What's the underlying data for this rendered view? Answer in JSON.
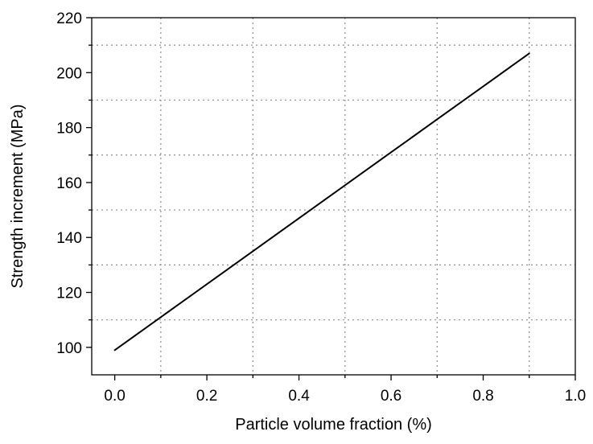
{
  "chart_data": {
    "type": "line",
    "title": "",
    "xlabel": "Particle volume fraction (%)",
    "ylabel": "Strength increment (MPa)",
    "xlim": [
      -0.05,
      1.0
    ],
    "ylim": [
      90,
      220
    ],
    "x_ticks": [
      0.0,
      0.2,
      0.4,
      0.6,
      0.8,
      1.0
    ],
    "x_tick_labels": [
      "0.0",
      "0.2",
      "0.4",
      "0.6",
      "0.8",
      "1.0"
    ],
    "y_ticks": [
      100,
      120,
      140,
      160,
      180,
      200,
      220
    ],
    "y_tick_labels": [
      "100",
      "120",
      "140",
      "160",
      "180",
      "200",
      "220"
    ],
    "x_grid": [
      0.1,
      0.3,
      0.5,
      0.7,
      0.9
    ],
    "y_grid": [
      110,
      130,
      150,
      170,
      190,
      210
    ],
    "grid": true,
    "legend": false,
    "series": [
      {
        "x": [
          0.0,
          0.1,
          0.2,
          0.3,
          0.4,
          0.5,
          0.6,
          0.7,
          0.8,
          0.9
        ],
        "y": [
          99,
          111,
          123,
          135,
          147,
          159,
          171,
          183,
          195,
          207
        ],
        "color": "#000000"
      }
    ]
  }
}
